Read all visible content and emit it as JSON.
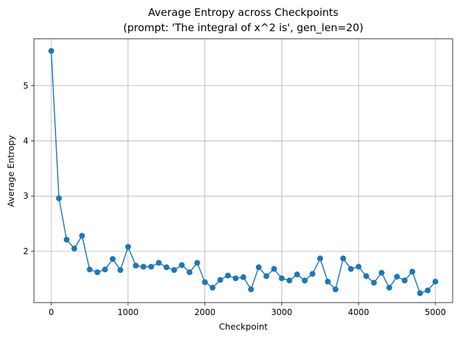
{
  "chart_data": {
    "type": "line",
    "title": "Average Entropy across Checkpoints",
    "subtitle": "(prompt: 'The integral of x^2 is', gen_len=20)",
    "xlabel": "Checkpoint",
    "ylabel": "Average Entropy",
    "xlim": [
      -225,
      5225
    ],
    "ylim": [
      1.07,
      5.85
    ],
    "xticks": [
      0,
      1000,
      2000,
      3000,
      4000,
      5000
    ],
    "xtick_labels": [
      "0",
      "1000",
      "2000",
      "3000",
      "4000",
      "5000"
    ],
    "yticks": [
      2,
      3,
      4,
      5
    ],
    "ytick_labels": [
      "2",
      "3",
      "4",
      "5"
    ],
    "grid": true,
    "line_color": "#1f77b4",
    "marker": "circle",
    "series": [
      {
        "x": [
          0,
          100,
          200,
          300,
          400,
          500,
          600,
          700,
          800,
          900,
          1000,
          1100,
          1200,
          1300,
          1400,
          1500,
          1600,
          1700,
          1800,
          1900,
          2000,
          2100,
          2200,
          2300,
          2400,
          2500,
          2600,
          2700,
          2800,
          2900,
          3000,
          3100,
          3200,
          3300,
          3400,
          3500,
          3600,
          3700,
          3800,
          3900,
          4000,
          4100,
          4200,
          4300,
          4400,
          4500,
          4600,
          4700,
          4800,
          4900,
          5000
        ],
        "y": [
          5.63,
          2.96,
          2.21,
          2.05,
          2.28,
          1.67,
          1.62,
          1.67,
          1.86,
          1.66,
          2.08,
          1.74,
          1.72,
          1.72,
          1.79,
          1.71,
          1.66,
          1.75,
          1.62,
          1.79,
          1.44,
          1.34,
          1.48,
          1.56,
          1.51,
          1.53,
          1.31,
          1.71,
          1.55,
          1.68,
          1.51,
          1.47,
          1.58,
          1.47,
          1.59,
          1.87,
          1.45,
          1.31,
          1.87,
          1.68,
          1.72,
          1.55,
          1.43,
          1.61,
          1.34,
          1.54,
          1.47,
          1.63,
          1.24,
          1.29,
          1.45
        ]
      }
    ]
  }
}
